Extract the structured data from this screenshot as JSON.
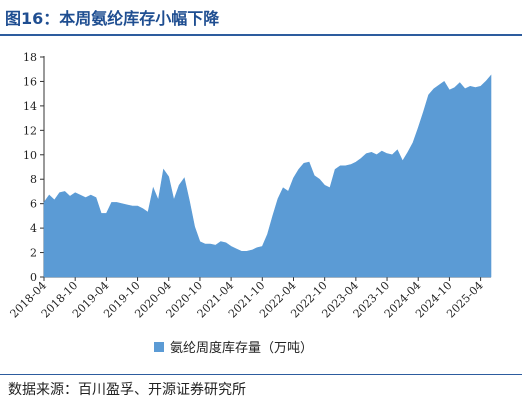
{
  "header": {
    "title": "图16：本周氨纶库存小幅下降"
  },
  "footer": {
    "source": "数据来源：百川盈孚、开源证券研究所"
  },
  "colors": {
    "series": "#5b9bd5",
    "title": "#1f4e91",
    "rule": "#2d5c9e"
  },
  "chart_data": {
    "type": "area",
    "title": "",
    "xlabel": "",
    "ylabel": "",
    "ylim": [
      0,
      18
    ],
    "yticks": [
      0,
      2,
      4,
      6,
      8,
      10,
      12,
      14,
      16,
      18
    ],
    "xlim": [
      "2018-04",
      "2025-06"
    ],
    "xticks": [
      "2018-04",
      "2018-10",
      "2019-04",
      "2019-10",
      "2020-04",
      "2020-10",
      "2021-04",
      "2021-10",
      "2022-04",
      "2022-10",
      "2023-04",
      "2023-10",
      "2024-04",
      "2024-10",
      "2025-04"
    ],
    "grid": false,
    "legend": "bottom-center",
    "series": [
      {
        "name": "氨纶周度库存量（万吨）",
        "points": [
          [
            "2018-04",
            6.1
          ],
          [
            "2018-05",
            6.7
          ],
          [
            "2018-06",
            6.3
          ],
          [
            "2018-07",
            6.9
          ],
          [
            "2018-08",
            7.0
          ],
          [
            "2018-09",
            6.6
          ],
          [
            "2018-10",
            6.9
          ],
          [
            "2018-11",
            6.7
          ],
          [
            "2018-12",
            6.5
          ],
          [
            "2019-01",
            6.7
          ],
          [
            "2019-02",
            6.5
          ],
          [
            "2019-03",
            5.2
          ],
          [
            "2019-04",
            5.2
          ],
          [
            "2019-05",
            6.1
          ],
          [
            "2019-06",
            6.1
          ],
          [
            "2019-07",
            6.0
          ],
          [
            "2019-08",
            5.9
          ],
          [
            "2019-09",
            5.8
          ],
          [
            "2019-10",
            5.8
          ],
          [
            "2019-11",
            5.6
          ],
          [
            "2019-12",
            5.3
          ],
          [
            "2020-01",
            7.3
          ],
          [
            "2020-02",
            6.3
          ],
          [
            "2020-03",
            8.8
          ],
          [
            "2020-04",
            8.2
          ],
          [
            "2020-05",
            6.3
          ],
          [
            "2020-06",
            7.5
          ],
          [
            "2020-07",
            8.1
          ],
          [
            "2020-08",
            6.2
          ],
          [
            "2020-09",
            4.1
          ],
          [
            "2020-10",
            2.9
          ],
          [
            "2020-11",
            2.7
          ],
          [
            "2020-12",
            2.7
          ],
          [
            "2021-01",
            2.6
          ],
          [
            "2021-02",
            2.9
          ],
          [
            "2021-03",
            2.8
          ],
          [
            "2021-04",
            2.5
          ],
          [
            "2021-05",
            2.3
          ],
          [
            "2021-06",
            2.1
          ],
          [
            "2021-07",
            2.1
          ],
          [
            "2021-08",
            2.2
          ],
          [
            "2021-09",
            2.4
          ],
          [
            "2021-10",
            2.5
          ],
          [
            "2021-11",
            3.5
          ],
          [
            "2021-12",
            5.0
          ],
          [
            "2022-01",
            6.4
          ],
          [
            "2022-02",
            7.3
          ],
          [
            "2022-03",
            7.0
          ],
          [
            "2022-04",
            8.1
          ],
          [
            "2022-05",
            8.8
          ],
          [
            "2022-06",
            9.3
          ],
          [
            "2022-07",
            9.4
          ],
          [
            "2022-08",
            8.3
          ],
          [
            "2022-09",
            8.0
          ],
          [
            "2022-10",
            7.5
          ],
          [
            "2022-11",
            7.3
          ],
          [
            "2022-12",
            8.8
          ],
          [
            "2023-01",
            9.1
          ],
          [
            "2023-02",
            9.1
          ],
          [
            "2023-03",
            9.2
          ],
          [
            "2023-04",
            9.4
          ],
          [
            "2023-05",
            9.7
          ],
          [
            "2023-06",
            10.1
          ],
          [
            "2023-07",
            10.2
          ],
          [
            "2023-08",
            10.0
          ],
          [
            "2023-09",
            10.3
          ],
          [
            "2023-10",
            10.1
          ],
          [
            "2023-11",
            10.0
          ],
          [
            "2023-12",
            10.4
          ],
          [
            "2024-01",
            9.5
          ],
          [
            "2024-02",
            10.2
          ],
          [
            "2024-03",
            11.0
          ],
          [
            "2024-04",
            12.2
          ],
          [
            "2024-05",
            13.5
          ],
          [
            "2024-06",
            14.9
          ],
          [
            "2024-07",
            15.4
          ],
          [
            "2024-08",
            15.7
          ],
          [
            "2024-09",
            16.0
          ],
          [
            "2024-10",
            15.3
          ],
          [
            "2024-11",
            15.5
          ],
          [
            "2024-12",
            15.9
          ],
          [
            "2025-01",
            15.4
          ],
          [
            "2025-02",
            15.6
          ],
          [
            "2025-03",
            15.5
          ],
          [
            "2025-04",
            15.6
          ],
          [
            "2025-05",
            16.0
          ],
          [
            "2025-06",
            16.5
          ]
        ]
      }
    ]
  }
}
